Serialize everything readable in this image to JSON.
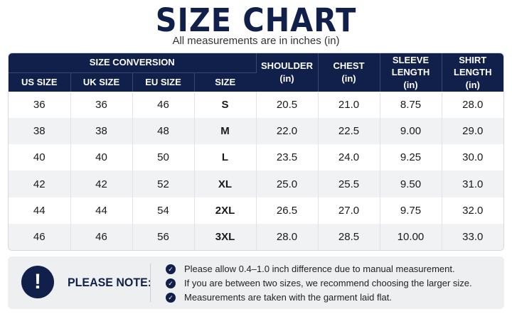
{
  "header": {
    "title": "SIZE CHART",
    "subtitle": "All measurements are in inches (in)"
  },
  "table": {
    "group_header": "SIZE CONVERSION",
    "conversion_columns": [
      "US SIZE",
      "UK SIZE",
      "EU SIZE",
      "SIZE"
    ],
    "measure_columns": [
      {
        "name": "SHOULDER",
        "unit": "(in)"
      },
      {
        "name": "CHEST",
        "unit": "(in)"
      },
      {
        "name": "SLEEVE LENGTH",
        "unit": "(in)"
      },
      {
        "name": "SHIRT LENGTH",
        "unit": "(in)"
      }
    ],
    "rows": [
      [
        "36",
        "36",
        "46",
        "S",
        "20.5",
        "21.0",
        "8.75",
        "28.0"
      ],
      [
        "38",
        "38",
        "48",
        "M",
        "22.0",
        "22.5",
        "9.00",
        "29.0"
      ],
      [
        "40",
        "40",
        "50",
        "L",
        "23.5",
        "24.0",
        "9.25",
        "30.0"
      ],
      [
        "42",
        "42",
        "52",
        "XL",
        "25.0",
        "25.5",
        "9.50",
        "31.0"
      ],
      [
        "44",
        "44",
        "54",
        "2XL",
        "26.5",
        "27.0",
        "9.75",
        "32.0"
      ],
      [
        "46",
        "46",
        "56",
        "3XL",
        "28.0",
        "28.5",
        "10.00",
        "33.0"
      ]
    ]
  },
  "note": {
    "icon": "exclamation-icon",
    "label": "PLEASE NOTE:",
    "items": [
      "Please allow 0.4–1.0 inch difference due to manual measurement.",
      "If you are between two sizes, we recommend choosing the larger size.",
      "Measurements are taken with the garment laid flat."
    ]
  },
  "colors": {
    "navy": "#11204a",
    "row_alt": "#f1f2f4",
    "note_bg": "#eeeff1"
  }
}
